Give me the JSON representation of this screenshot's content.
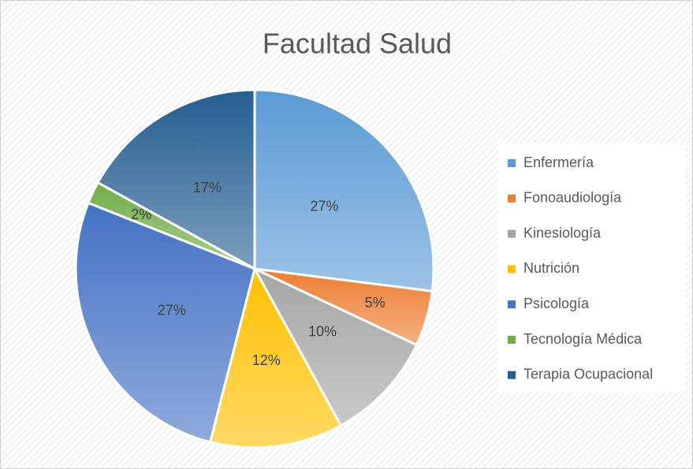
{
  "chart_data": {
    "type": "pie",
    "title": "Facultad Salud",
    "categories": [
      "Enfermería",
      "Fonoaudiología",
      "Kinesiología",
      "Nutrición",
      "Psicología",
      "Tecnología Médica",
      "Terapia Ocupacional"
    ],
    "values": [
      27,
      5,
      10,
      12,
      27,
      2,
      17
    ],
    "value_labels": [
      "27%",
      "5%",
      "10%",
      "12%",
      "27%",
      "2%",
      "17%"
    ],
    "colors": [
      "#5b9bd5",
      "#ed7d31",
      "#a5a5a5",
      "#ffc000",
      "#4472c4",
      "#70ad47",
      "#255e91"
    ],
    "legend": "right"
  }
}
